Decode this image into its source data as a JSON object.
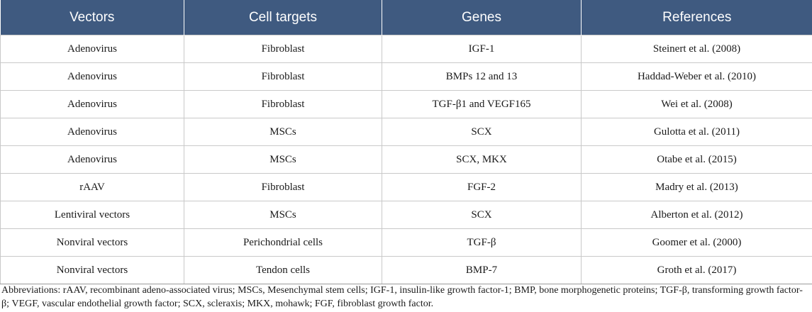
{
  "headers": [
    "Vectors",
    "Cell targets",
    "Genes",
    "References"
  ],
  "rows": [
    [
      "Adenovirus",
      "Fibroblast",
      "IGF-1",
      "Steinert et al. (2008)"
    ],
    [
      "Adenovirus",
      "Fibroblast",
      "BMPs 12 and 13",
      "Haddad-Weber et al. (2010)"
    ],
    [
      "Adenovirus",
      "Fibroblast",
      "TGF-β1 and VEGF165",
      "Wei et al. (2008)"
    ],
    [
      "Adenovirus",
      "MSCs",
      "SCX",
      "Gulotta et al. (2011)"
    ],
    [
      "Adenovirus",
      "MSCs",
      "SCX, MKX",
      "Otabe et al. (2015)"
    ],
    [
      "rAAV",
      "Fibroblast",
      "FGF-2",
      "Madry et al. (2013)"
    ],
    [
      "Lentiviral vectors",
      "MSCs",
      "SCX",
      "Alberton et al. (2012)"
    ],
    [
      "Nonviral vectors",
      "Perichondrial cells",
      "TGF-β",
      "Goomer et al. (2000)"
    ],
    [
      "Nonviral vectors",
      "Tendon cells",
      "BMP-7",
      "Groth et al. (2017)"
    ]
  ],
  "footnote": "Abbreviations: rAAV, recombinant adeno-associated virus; MSCs, Mesenchymal stem cells; IGF-1, insulin-like growth factor-1; BMP, bone morphogenetic proteins; TGF-β, transforming growth factor-β; VEGF, vascular endothelial growth factor; SCX, scleraxis; MKX, mohawk; FGF, fibroblast growth factor.",
  "colors": {
    "header_bg": "#3f5a80",
    "header_text": "#ffffff",
    "border": "#c9c9c9"
  }
}
